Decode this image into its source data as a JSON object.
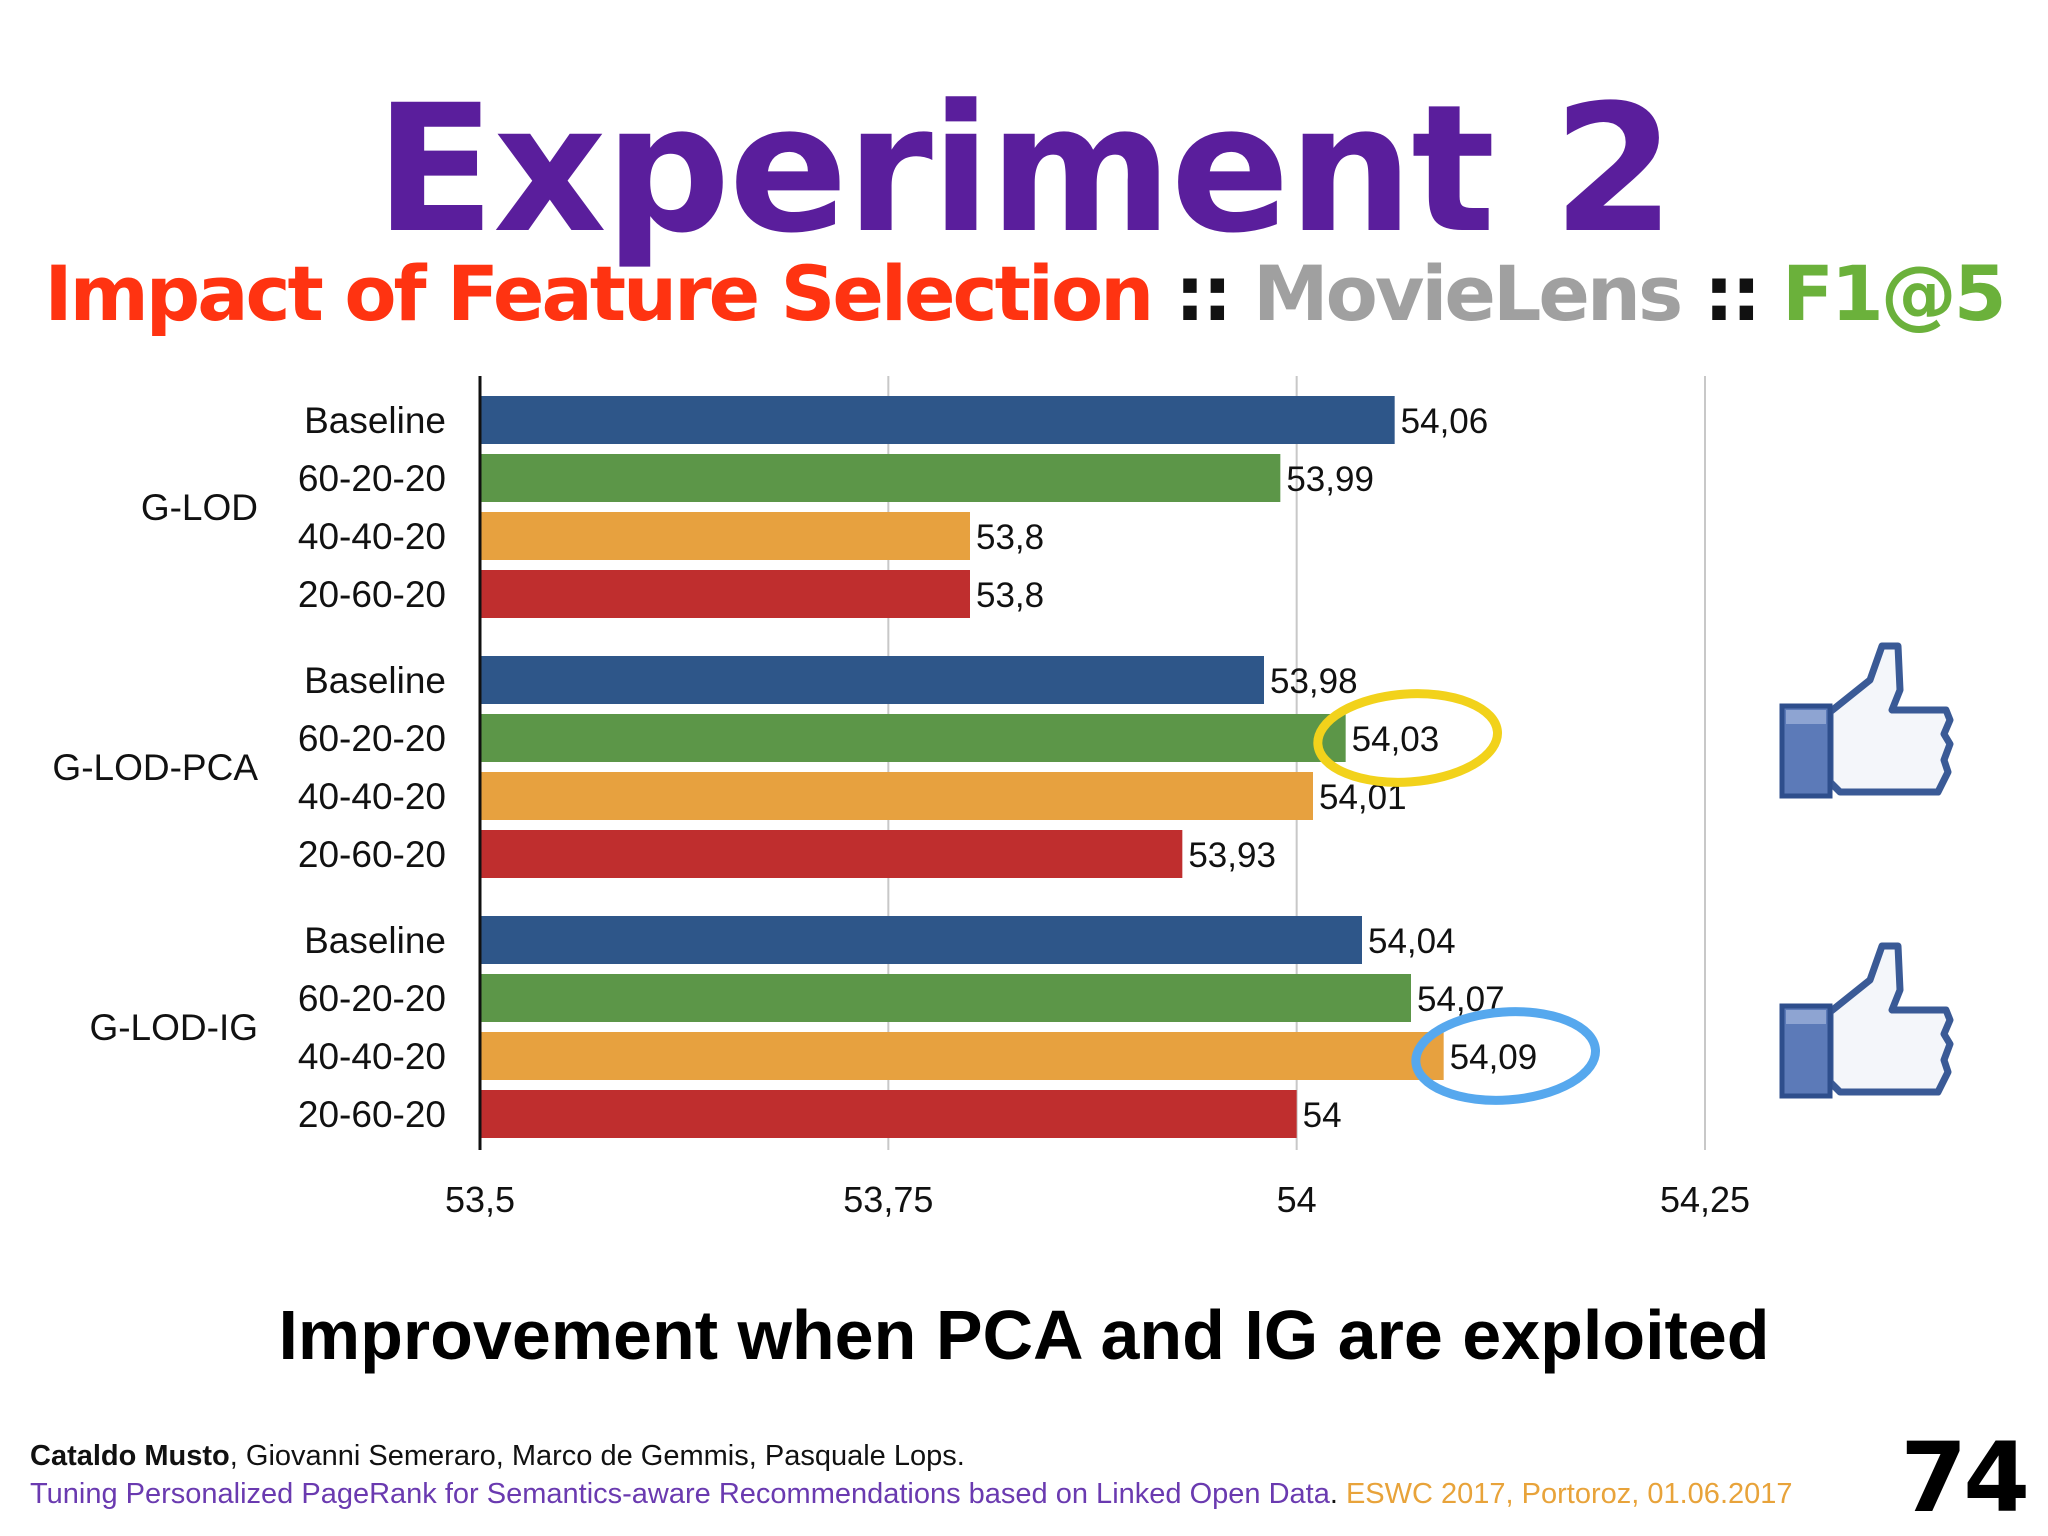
{
  "slide": {
    "title": "Experiment 2",
    "subtitle": {
      "part1": "Impact of Feature Selection",
      "sep1": " :: ",
      "part2": "MovieLens",
      "sep2": " :: ",
      "part3": "F1@5"
    },
    "conclusion": "Improvement when PCA and IG are exploited",
    "page_number": "74",
    "footer": {
      "author_bold": "Cataldo Musto",
      "authors_rest": ", Giovanni Semeraro, Marco de Gemmis, Pasquale Lops.",
      "paper_title": "Tuning Personalized PageRank for Semantics-aware Recommendations based on Linked Open Data",
      "paper_sep": ". ",
      "venue": "ESWC 2017, Portoroz, 01.06.2017"
    },
    "icons": [
      "thumbs-up-icon",
      "thumbs-up-icon"
    ]
  },
  "colors": {
    "title": "#5A1E9C",
    "subtitle_red": "#FF3311",
    "subtitle_sep": "#111111",
    "subtitle_gray": "#A0A0A0",
    "subtitle_green": "#6BB13B",
    "footer_purple": "#6A3AB0",
    "footer_orange": "#E8A33A",
    "Baseline": "#2E5689",
    "60-20-20": "#5C9648",
    "40-40-20": "#E7A13F",
    "20-60-20": "#BF2E2E",
    "highlight_yellow": "#F2D21B",
    "highlight_blue": "#56A8EE",
    "thumb_blue": "#3A5A96"
  },
  "chart_data": {
    "type": "bar",
    "orientation": "horizontal",
    "xlim": [
      53.5,
      54.25
    ],
    "xticks": [
      "53,5",
      "53,75",
      "54",
      "54,25"
    ],
    "xtick_values": [
      53.5,
      53.75,
      54,
      54.25
    ],
    "grid": true,
    "groups": [
      {
        "name": "G-LOD",
        "bars": [
          {
            "label": "Baseline",
            "value": 54.06,
            "text": "54,06"
          },
          {
            "label": "60-20-20",
            "value": 53.99,
            "text": "53,99"
          },
          {
            "label": "40-40-20",
            "value": 53.8,
            "text": "53,8"
          },
          {
            "label": "20-60-20",
            "value": 53.8,
            "text": "53,8"
          }
        ]
      },
      {
        "name": "G-LOD-PCA",
        "bars": [
          {
            "label": "Baseline",
            "value": 53.98,
            "text": "53,98"
          },
          {
            "label": "60-20-20",
            "value": 54.03,
            "text": "54,03",
            "highlight": "yellow"
          },
          {
            "label": "40-40-20",
            "value": 54.01,
            "text": "54,01"
          },
          {
            "label": "20-60-20",
            "value": 53.93,
            "text": "53,93"
          }
        ]
      },
      {
        "name": "G-LOD-IG",
        "bars": [
          {
            "label": "Baseline",
            "value": 54.04,
            "text": "54,04"
          },
          {
            "label": "60-20-20",
            "value": 54.07,
            "text": "54,07"
          },
          {
            "label": "40-40-20",
            "value": 54.09,
            "text": "54,09",
            "highlight": "blue"
          },
          {
            "label": "20-60-20",
            "value": 54.0,
            "text": "54"
          }
        ]
      }
    ]
  }
}
